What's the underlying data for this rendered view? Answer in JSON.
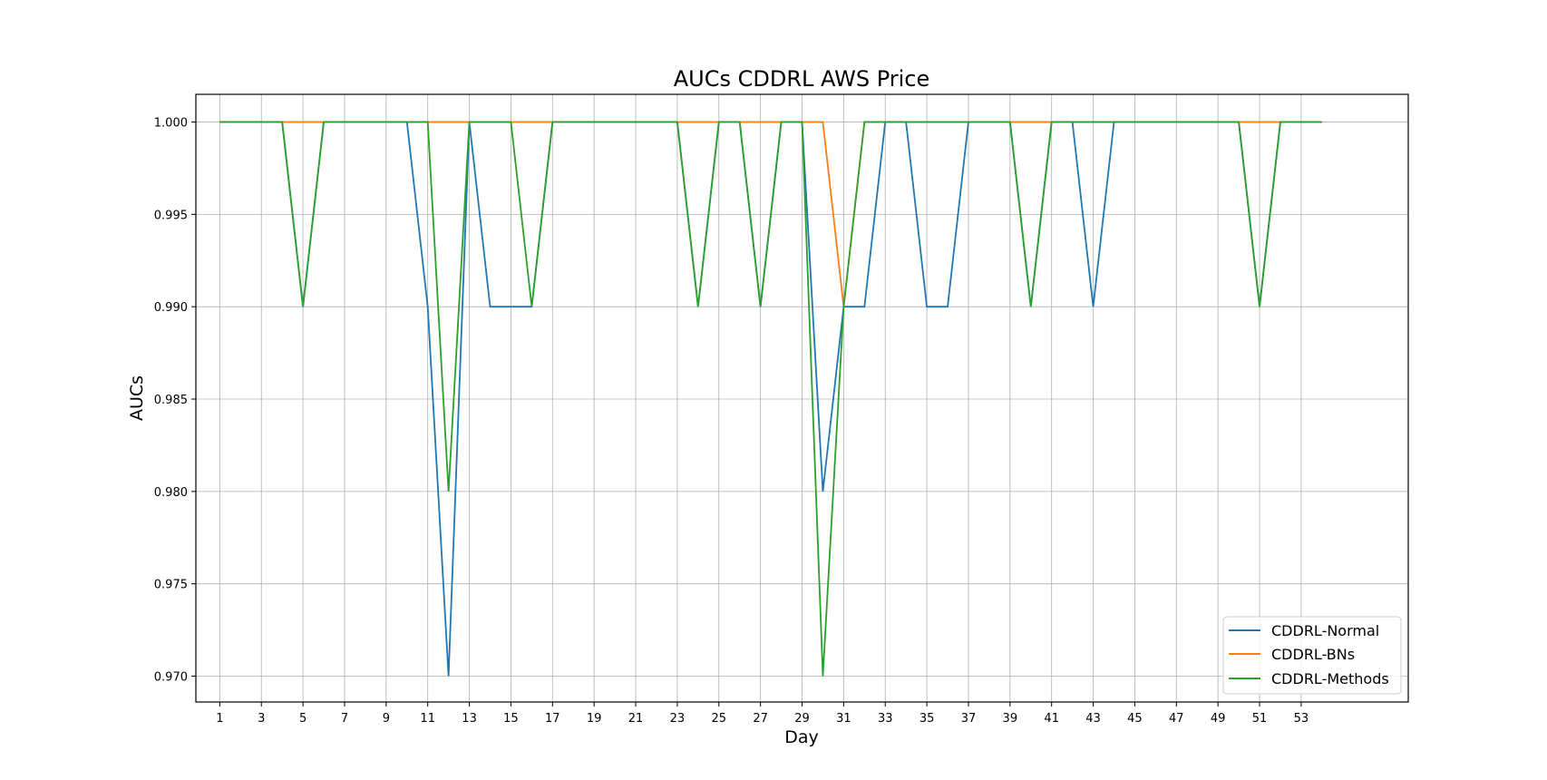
{
  "chart_data": {
    "type": "line",
    "title": "AUCs CDDRL AWS Price",
    "xlabel": "Day",
    "ylabel": "AUCs",
    "xlim": [
      -0.15,
      58.15
    ],
    "ylim": [
      0.9686,
      1.0015
    ],
    "xticks": [
      1,
      3,
      5,
      7,
      9,
      11,
      13,
      15,
      17,
      19,
      21,
      23,
      25,
      27,
      29,
      31,
      33,
      35,
      37,
      39,
      41,
      43,
      45,
      47,
      49,
      51,
      53
    ],
    "yticks": [
      0.97,
      0.975,
      0.98,
      0.985,
      0.99,
      0.995,
      1.0
    ],
    "ytick_labels": [
      "0.970",
      "0.975",
      "0.980",
      "0.985",
      "0.990",
      "0.995",
      "1.000"
    ],
    "grid": true,
    "legend_position": "lower-right",
    "x": [
      1,
      2,
      3,
      4,
      5,
      6,
      7,
      8,
      9,
      10,
      11,
      12,
      13,
      14,
      15,
      16,
      17,
      18,
      19,
      20,
      21,
      22,
      23,
      24,
      25,
      26,
      27,
      28,
      29,
      30,
      31,
      32,
      33,
      34,
      35,
      36,
      37,
      38,
      39,
      40,
      41,
      42,
      43,
      44,
      45,
      46,
      47,
      48,
      49,
      50,
      51,
      52,
      53,
      54
    ],
    "series": [
      {
        "name": "CDDRL-Normal",
        "color": "#1f77b4",
        "values": [
          1.0,
          1.0,
          1.0,
          1.0,
          0.99,
          1.0,
          1.0,
          1.0,
          1.0,
          1.0,
          0.99,
          0.97,
          1.0,
          0.99,
          0.99,
          0.99,
          1.0,
          1.0,
          1.0,
          1.0,
          1.0,
          1.0,
          1.0,
          0.99,
          1.0,
          1.0,
          0.99,
          1.0,
          1.0,
          0.98,
          0.99,
          0.99,
          1.0,
          1.0,
          0.99,
          0.99,
          1.0,
          1.0,
          1.0,
          0.99,
          1.0,
          1.0,
          0.99,
          1.0,
          1.0,
          1.0,
          1.0,
          1.0,
          1.0,
          1.0,
          0.99,
          1.0,
          1.0,
          1.0
        ]
      },
      {
        "name": "CDDRL-BNs",
        "color": "#ff7f0e",
        "values": [
          1.0,
          1.0,
          1.0,
          1.0,
          1.0,
          1.0,
          1.0,
          1.0,
          1.0,
          1.0,
          1.0,
          1.0,
          1.0,
          1.0,
          1.0,
          1.0,
          1.0,
          1.0,
          1.0,
          1.0,
          1.0,
          1.0,
          1.0,
          1.0,
          1.0,
          1.0,
          1.0,
          1.0,
          1.0,
          1.0,
          0.99,
          1.0,
          1.0,
          1.0,
          1.0,
          1.0,
          1.0,
          1.0,
          1.0,
          1.0,
          1.0,
          1.0,
          1.0,
          1.0,
          1.0,
          1.0,
          1.0,
          1.0,
          1.0,
          1.0,
          1.0,
          1.0,
          1.0,
          1.0
        ]
      },
      {
        "name": "CDDRL-Methods",
        "color": "#2ca02c",
        "values": [
          1.0,
          1.0,
          1.0,
          1.0,
          0.99,
          1.0,
          1.0,
          1.0,
          1.0,
          1.0,
          1.0,
          0.98,
          1.0,
          1.0,
          1.0,
          0.99,
          1.0,
          1.0,
          1.0,
          1.0,
          1.0,
          1.0,
          1.0,
          0.99,
          1.0,
          1.0,
          0.99,
          1.0,
          1.0,
          0.97,
          0.99,
          1.0,
          1.0,
          1.0,
          1.0,
          1.0,
          1.0,
          1.0,
          1.0,
          0.99,
          1.0,
          1.0,
          1.0,
          1.0,
          1.0,
          1.0,
          1.0,
          1.0,
          1.0,
          1.0,
          0.99,
          1.0,
          1.0,
          1.0
        ]
      }
    ]
  }
}
